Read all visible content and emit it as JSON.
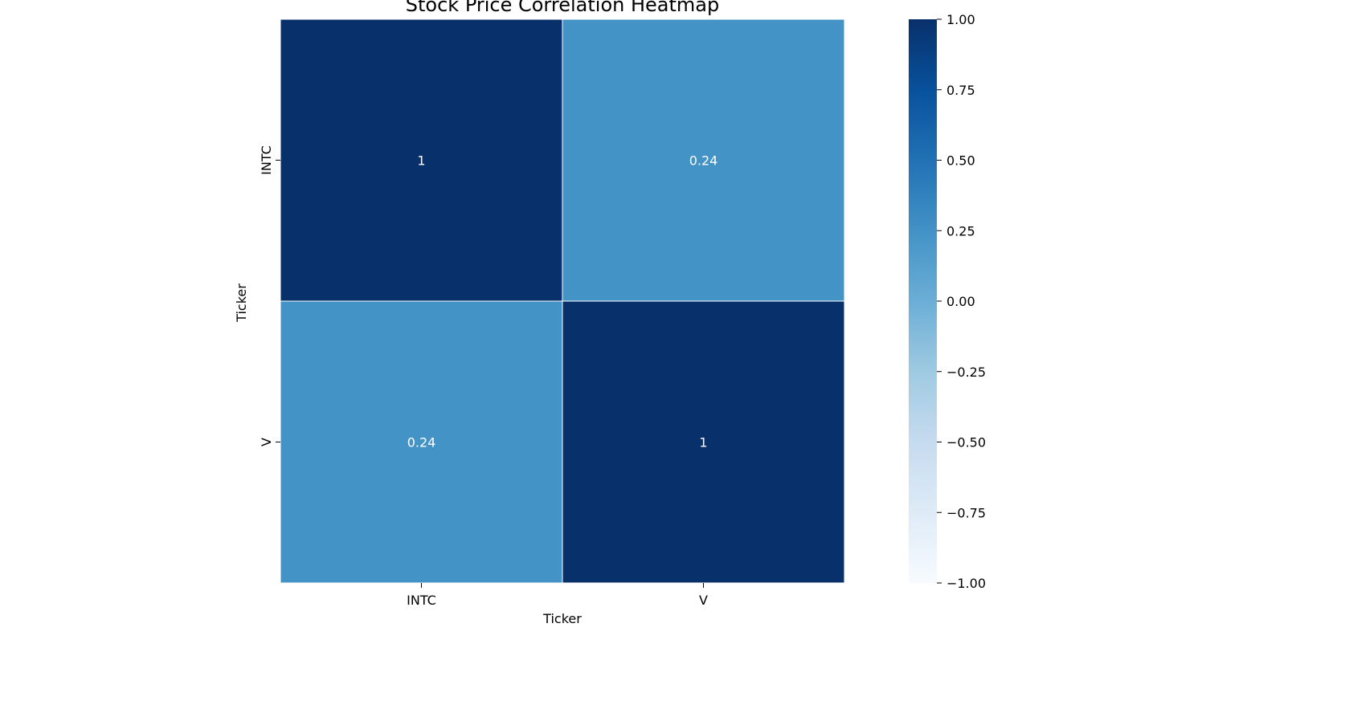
{
  "chart_data": {
    "type": "heatmap",
    "title": "Stock Price Correlation Heatmap",
    "xlabel": "Ticker",
    "ylabel": "Ticker",
    "x_categories": [
      "INTC",
      "V"
    ],
    "y_categories": [
      "INTC",
      "V"
    ],
    "values": [
      [
        1,
        0.24
      ],
      [
        0.24,
        1
      ]
    ],
    "annotations": [
      [
        "1",
        "0.24"
      ],
      [
        "0.24",
        "1"
      ]
    ],
    "colormap": "Blues",
    "vmin": -1.0,
    "vmax": 1.0,
    "colorbar": {
      "ticks": [
        1.0,
        0.75,
        0.5,
        0.25,
        0.0,
        -0.25,
        -0.5,
        -0.75,
        -1.0
      ],
      "tick_labels": [
        "1.00",
        "0.75",
        "0.50",
        "0.25",
        "0.00",
        "−0.25",
        "−0.50",
        "−0.75",
        "−1.00"
      ]
    },
    "grid": false,
    "colors": {
      "cell_border": "#ffffff",
      "annotation_text": "#ffffff",
      "min_color": "#f7fbff",
      "max_color": "#08306b"
    }
  }
}
